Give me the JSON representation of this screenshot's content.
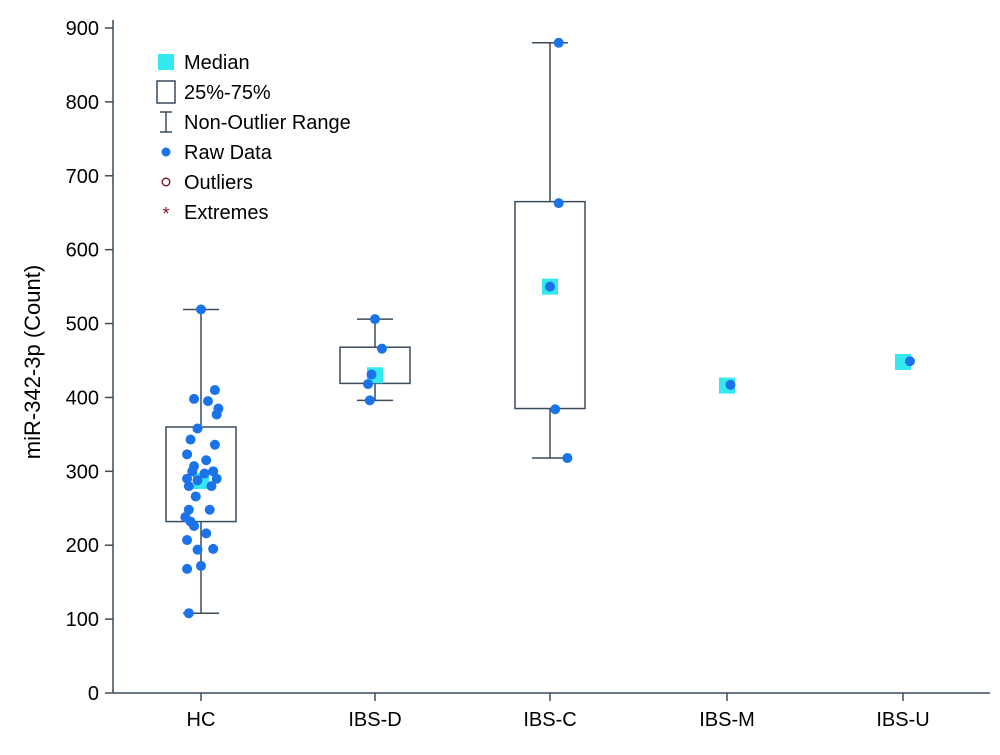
{
  "chart_data": {
    "type": "box",
    "title": "",
    "xlabel": "",
    "ylabel": "miR-342-3p (Count)",
    "ylim": [
      0,
      900
    ],
    "yticks": [
      0,
      100,
      200,
      300,
      400,
      500,
      600,
      700,
      800,
      900
    ],
    "categories": [
      "HC",
      "IBS-D",
      "IBS-C",
      "IBS-M",
      "IBS-U"
    ],
    "legend": [
      {
        "key": "median",
        "label": "Median"
      },
      {
        "key": "box",
        "label": "25%-75%"
      },
      {
        "key": "range",
        "label": "Non-Outlier Range"
      },
      {
        "key": "raw",
        "label": "Raw Data"
      },
      {
        "key": "outliers",
        "label": "Outliers"
      },
      {
        "key": "extremes",
        "label": "Extremes"
      }
    ],
    "legend_position": "top-left",
    "colors": {
      "median": "#33e8ee",
      "raw": "#1a73e8",
      "box": "#3b4a5c",
      "axis": "#3b4a5c",
      "outlier": "#7a1020"
    },
    "groups": [
      {
        "name": "HC",
        "median": 287,
        "q1": 232,
        "q3": 360,
        "min": 108,
        "max": 519,
        "raw": [
          [
            0.0,
            519
          ],
          [
            -0.04,
            398
          ],
          [
            0.04,
            395
          ],
          [
            0.08,
            410
          ],
          [
            0.1,
            385
          ],
          [
            0.09,
            377
          ],
          [
            -0.02,
            358
          ],
          [
            -0.06,
            343
          ],
          [
            0.08,
            336
          ],
          [
            -0.08,
            323
          ],
          [
            0.03,
            315
          ],
          [
            -0.04,
            307
          ],
          [
            -0.05,
            300
          ],
          [
            0.02,
            297
          ],
          [
            0.07,
            300
          ],
          [
            -0.08,
            290
          ],
          [
            -0.02,
            288
          ],
          [
            0.09,
            290
          ],
          [
            -0.07,
            280
          ],
          [
            0.06,
            280
          ],
          [
            -0.03,
            266
          ],
          [
            0.05,
            248
          ],
          [
            -0.07,
            248
          ],
          [
            -0.09,
            238
          ],
          [
            -0.06,
            232
          ],
          [
            -0.04,
            226
          ],
          [
            0.03,
            216
          ],
          [
            -0.08,
            207
          ],
          [
            0.07,
            195
          ],
          [
            -0.02,
            194
          ],
          [
            -0.08,
            168
          ],
          [
            0.0,
            172
          ],
          [
            -0.07,
            108
          ]
        ]
      },
      {
        "name": "IBS-D",
        "median": 430,
        "q1": 419,
        "q3": 468,
        "min": 396,
        "max": 506,
        "raw": [
          [
            0.0,
            506
          ],
          [
            0.04,
            466
          ],
          [
            -0.02,
            431
          ],
          [
            -0.04,
            418
          ],
          [
            -0.03,
            396
          ]
        ]
      },
      {
        "name": "IBS-C",
        "median": 550,
        "q1": 385,
        "q3": 665,
        "min": 318,
        "max": 880,
        "raw": [
          [
            0.05,
            880
          ],
          [
            0.05,
            663
          ],
          [
            0.0,
            550
          ],
          [
            0.03,
            384
          ],
          [
            0.1,
            318
          ]
        ]
      },
      {
        "name": "IBS-M",
        "median": 416,
        "raw": [
          [
            0.02,
            417
          ]
        ]
      },
      {
        "name": "IBS-U",
        "median": 448,
        "raw": [
          [
            0.04,
            449
          ]
        ]
      }
    ]
  }
}
